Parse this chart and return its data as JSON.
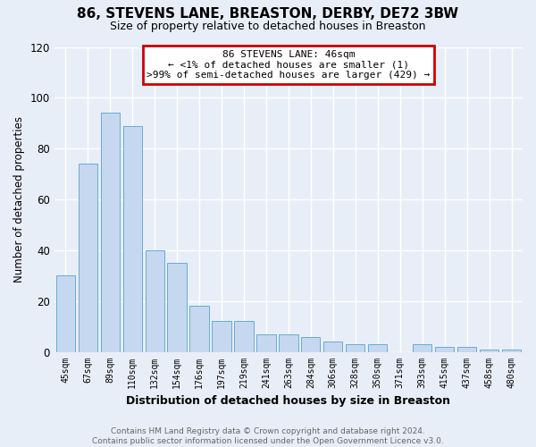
{
  "title": "86, STEVENS LANE, BREASTON, DERBY, DE72 3BW",
  "subtitle": "Size of property relative to detached houses in Breaston",
  "xlabel": "Distribution of detached houses by size in Breaston",
  "ylabel": "Number of detached properties",
  "bar_color": "#c5d8f0",
  "bar_edge_color": "#6aaad4",
  "categories": [
    "45sqm",
    "67sqm",
    "89sqm",
    "110sqm",
    "132sqm",
    "154sqm",
    "176sqm",
    "197sqm",
    "219sqm",
    "241sqm",
    "263sqm",
    "284sqm",
    "306sqm",
    "328sqm",
    "350sqm",
    "371sqm",
    "393sqm",
    "415sqm",
    "437sqm",
    "458sqm",
    "480sqm"
  ],
  "values": [
    30,
    74,
    94,
    89,
    40,
    35,
    18,
    12,
    12,
    7,
    7,
    6,
    4,
    3,
    3,
    0,
    3,
    2,
    2,
    1,
    1
  ],
  "ylim": [
    0,
    120
  ],
  "yticks": [
    0,
    20,
    40,
    60,
    80,
    100,
    120
  ],
  "annotation_title": "86 STEVENS LANE: 46sqm",
  "annotation_line1": "← <1% of detached houses are smaller (1)",
  "annotation_line2": ">99% of semi-detached houses are larger (429) →",
  "annotation_box_color": "#ffffff",
  "annotation_box_edge": "#cc0000",
  "footer_line1": "Contains HM Land Registry data © Crown copyright and database right 2024.",
  "footer_line2": "Contains public sector information licensed under the Open Government Licence v3.0.",
  "background_color": "#e8eef8",
  "grid_color": "#ffffff"
}
